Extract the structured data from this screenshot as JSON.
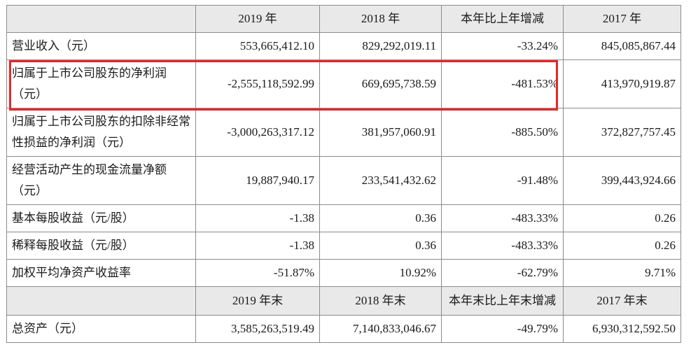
{
  "header": [
    "",
    "2019 年",
    "2018 年",
    "本年比上年增减",
    "2017 年"
  ],
  "rows": [
    {
      "label": "营业收入（元）",
      "values": [
        "553,665,412.10",
        "829,292,019.11",
        "-33.24%",
        "845,085,867.44"
      ]
    },
    {
      "label": "归属于上市公司股东的净利润（元）",
      "values": [
        "-2,555,118,592.99",
        "669,695,738.59",
        "-481.53%",
        "413,970,919.87"
      ]
    },
    {
      "label": "归属于上市公司股东的扣除非经常性损益的净利润（元）",
      "values": [
        "-3,000,263,317.12",
        "381,957,060.91",
        "-885.50%",
        "372,827,757.45"
      ]
    },
    {
      "label": "经营活动产生的现金流量净额（元）",
      "values": [
        "19,887,940.17",
        "233,541,432.62",
        "-91.48%",
        "399,443,924.66"
      ]
    },
    {
      "label": "基本每股收益（元/股）",
      "values": [
        "-1.38",
        "0.36",
        "-483.33%",
        "0.26"
      ]
    },
    {
      "label": "稀释每股收益（元/股）",
      "values": [
        "-1.38",
        "0.36",
        "-483.33%",
        "0.26"
      ]
    },
    {
      "label": "加权平均净资产收益率",
      "values": [
        "-51.87%",
        "10.92%",
        "-62.79%",
        "9.71%"
      ]
    }
  ],
  "header2": [
    "",
    "2019 年末",
    "2018 年末",
    "本年末比上年末增减",
    "2017 年末"
  ],
  "rows2": [
    {
      "label": "总资产（元）",
      "values": [
        "3,585,263,519.49",
        "7,140,833,046.67",
        "-49.79%",
        "6,930,312,592.50"
      ]
    }
  ],
  "colors": {
    "highlight": "#e8262a",
    "header_bg": "#e9e9e9",
    "border": "#8c8c8c"
  }
}
